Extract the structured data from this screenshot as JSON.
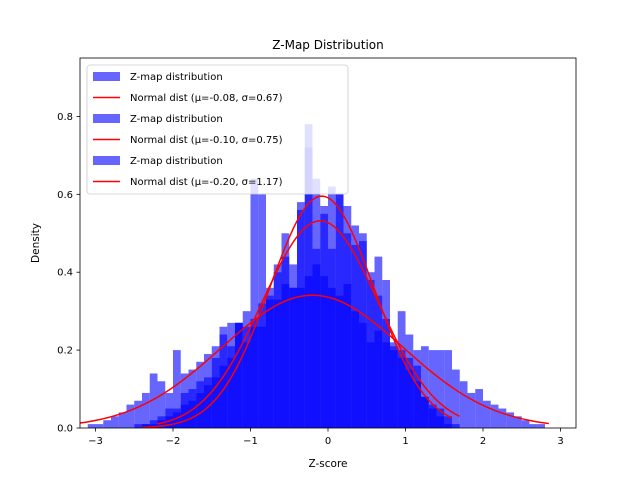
{
  "chart_data": {
    "type": "bar",
    "title": "Z-Map Distribution",
    "xlabel": "Z-score",
    "ylabel": "Density",
    "xlim": [
      -3.2,
      3.2
    ],
    "ylim": [
      0.0,
      0.95
    ],
    "xticks": [
      -3,
      -2,
      -1,
      0,
      1,
      2,
      3
    ],
    "yticks": [
      0.0,
      0.2,
      0.4,
      0.6,
      0.8
    ],
    "legend_position": "upper-left",
    "grid": false,
    "hist_color": "#0000ff",
    "hist_alpha": 0.6,
    "curve_color": "#ff0000",
    "series": [
      {
        "kind": "histogram",
        "name": "Z-map distribution",
        "bin_width": 0.1,
        "x": [
          -2.35,
          -2.25,
          -2.15,
          -2.05,
          -1.95,
          -1.85,
          -1.75,
          -1.65,
          -1.55,
          -1.45,
          -1.35,
          -1.25,
          -1.15,
          -1.05,
          -0.95,
          -0.85,
          -0.75,
          -0.65,
          -0.55,
          -0.45,
          -0.35,
          -0.25,
          -0.15,
          -0.05,
          0.05,
          0.15,
          0.25,
          0.35,
          0.45,
          0.55,
          0.65,
          0.75,
          0.85,
          0.95,
          1.05,
          1.15,
          1.25,
          1.35,
          1.45,
          1.55
        ],
        "values": [
          0.01,
          0.01,
          0.02,
          0.03,
          0.04,
          0.06,
          0.07,
          0.09,
          0.11,
          0.13,
          0.16,
          0.21,
          0.27,
          0.22,
          0.64,
          0.26,
          0.33,
          0.42,
          0.5,
          0.42,
          0.56,
          0.72,
          0.46,
          0.55,
          0.46,
          0.6,
          0.57,
          0.52,
          0.5,
          0.4,
          0.34,
          0.28,
          0.22,
          0.18,
          0.18,
          0.12,
          0.08,
          0.05,
          0.03,
          0.01
        ]
      },
      {
        "kind": "curve",
        "name": "Normal dist (μ=-0.08, σ=0.67)",
        "mu": -0.08,
        "sigma": 0.67,
        "x_range": [
          -2.4,
          1.6
        ]
      },
      {
        "kind": "histogram",
        "name": "Z-map distribution",
        "bin_width": 0.1,
        "x": [
          -2.45,
          -2.35,
          -2.25,
          -2.15,
          -2.05,
          -1.95,
          -1.85,
          -1.75,
          -1.65,
          -1.55,
          -1.45,
          -1.35,
          -1.25,
          -1.15,
          -1.05,
          -0.95,
          -0.85,
          -0.75,
          -0.65,
          -0.55,
          -0.45,
          -0.35,
          -0.25,
          -0.15,
          -0.05,
          0.05,
          0.15,
          0.25,
          0.35,
          0.45,
          0.55,
          0.65,
          0.75,
          0.85,
          0.95,
          1.05,
          1.15,
          1.25,
          1.35,
          1.45,
          1.55,
          1.65
        ],
        "values": [
          0.01,
          0.01,
          0.02,
          0.03,
          0.05,
          0.05,
          0.09,
          0.1,
          0.12,
          0.13,
          0.18,
          0.24,
          0.18,
          0.27,
          0.3,
          0.28,
          0.6,
          0.36,
          0.4,
          0.44,
          0.36,
          0.58,
          0.78,
          0.64,
          0.57,
          0.62,
          0.6,
          0.5,
          0.47,
          0.48,
          0.38,
          0.44,
          0.38,
          0.2,
          0.3,
          0.24,
          0.16,
          0.08,
          0.06,
          0.05,
          0.03,
          0.01
        ]
      },
      {
        "kind": "curve",
        "name": "Normal dist (μ=-0.10, σ=0.75)",
        "mu": -0.1,
        "sigma": 0.75,
        "x_range": [
          -2.2,
          1.7
        ]
      },
      {
        "kind": "histogram",
        "name": "Z-map distribution",
        "bin_width": 0.1,
        "x": [
          -3.05,
          -2.95,
          -2.85,
          -2.75,
          -2.65,
          -2.55,
          -2.45,
          -2.35,
          -2.25,
          -2.15,
          -2.05,
          -1.95,
          -1.85,
          -1.75,
          -1.65,
          -1.55,
          -1.45,
          -1.35,
          -1.25,
          -1.15,
          -1.05,
          -0.95,
          -0.85,
          -0.75,
          -0.65,
          -0.55,
          -0.45,
          -0.35,
          -0.25,
          -0.15,
          -0.05,
          0.05,
          0.15,
          0.25,
          0.35,
          0.45,
          0.55,
          0.65,
          0.75,
          0.85,
          0.95,
          1.05,
          1.15,
          1.25,
          1.35,
          1.45,
          1.55,
          1.65,
          1.75,
          1.85,
          1.95,
          2.05,
          2.15,
          2.25,
          2.35,
          2.45,
          2.55,
          2.65,
          2.75
        ],
        "values": [
          0.01,
          0.01,
          0.02,
          0.03,
          0.04,
          0.06,
          0.07,
          0.09,
          0.14,
          0.12,
          0.09,
          0.2,
          0.14,
          0.15,
          0.17,
          0.19,
          0.21,
          0.26,
          0.27,
          0.27,
          0.26,
          0.26,
          0.32,
          0.34,
          0.33,
          0.37,
          0.36,
          0.36,
          0.39,
          0.42,
          0.39,
          0.36,
          0.34,
          0.37,
          0.3,
          0.27,
          0.22,
          0.25,
          0.22,
          0.21,
          0.2,
          0.15,
          0.2,
          0.21,
          0.2,
          0.2,
          0.2,
          0.15,
          0.12,
          0.09,
          0.1,
          0.07,
          0.06,
          0.05,
          0.04,
          0.03,
          0.02,
          0.01,
          0.01
        ]
      },
      {
        "kind": "curve",
        "name": "Normal dist (μ=-0.20, σ=1.17)",
        "mu": -0.2,
        "sigma": 1.17,
        "x_range": [
          -3.2,
          2.85
        ]
      }
    ]
  }
}
